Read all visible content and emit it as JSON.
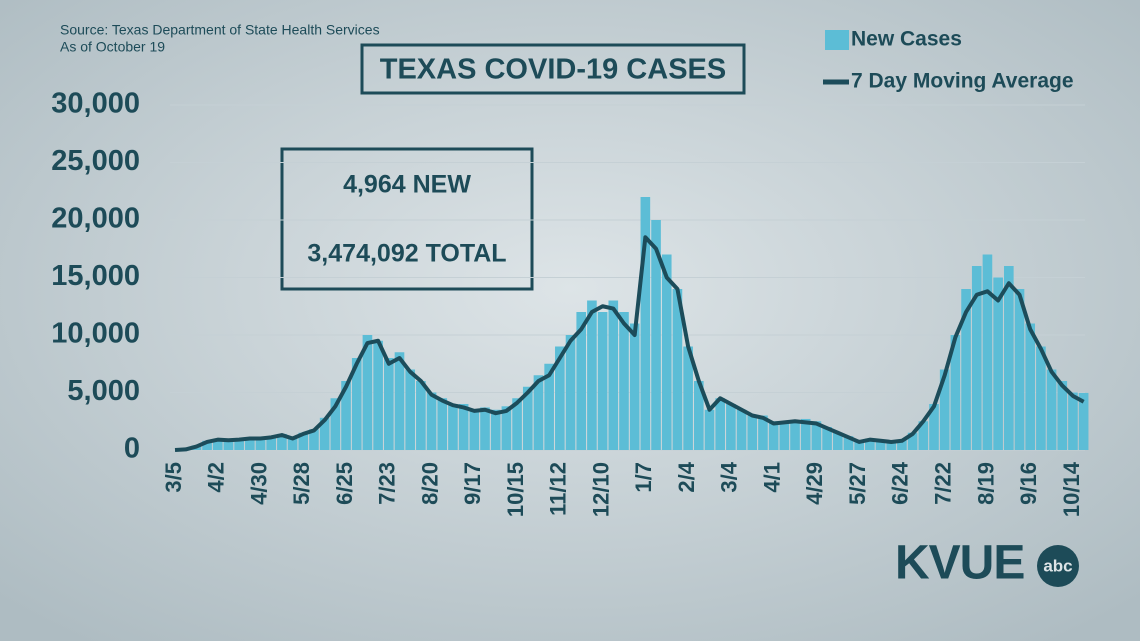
{
  "chart_data": {
    "type": "bar",
    "title": "TEXAS COVID-19 CASES",
    "source": "Source: Texas Department of State Health Services",
    "as_of": "As of October 19",
    "annotations": [
      "4,964 NEW",
      "3,474,092 TOTAL"
    ],
    "categories": [
      "3/5",
      null,
      null,
      null,
      "4/2",
      null,
      null,
      null,
      "4/30",
      null,
      null,
      null,
      "5/28",
      null,
      null,
      null,
      "6/25",
      null,
      null,
      null,
      "7/23",
      null,
      null,
      null,
      "8/20",
      null,
      null,
      null,
      "9/17",
      null,
      null,
      null,
      "10/15",
      null,
      null,
      null,
      "11/12",
      null,
      null,
      null,
      "12/10",
      null,
      null,
      null,
      "1/7",
      null,
      null,
      null,
      "2/4",
      null,
      null,
      null,
      "3/4",
      null,
      null,
      null,
      "4/1",
      null,
      null,
      null,
      "4/29",
      null,
      null,
      null,
      "5/27",
      null,
      null,
      null,
      "6/24",
      null,
      null,
      null,
      "7/22",
      null,
      null,
      null,
      "8/19",
      null,
      null,
      null,
      "9/16",
      null,
      null,
      null,
      "10/14",
      null
    ],
    "series": [
      {
        "name": "New Cases",
        "type": "bar",
        "color": "#5cbdd6",
        "values": [
          0,
          100,
          400,
          800,
          1000,
          900,
          1000,
          1100,
          1100,
          1200,
          1400,
          1100,
          1500,
          1800,
          2800,
          4500,
          6000,
          8000,
          10000,
          9500,
          8000,
          8500,
          7000,
          6000,
          5000,
          4500,
          4000,
          4000,
          3500,
          3700,
          3500,
          3800,
          4500,
          5500,
          6500,
          7500,
          9000,
          10000,
          12000,
          13000,
          12000,
          13000,
          12000,
          11000,
          22000,
          20000,
          17000,
          14000,
          9000,
          6000,
          3500,
          4500,
          4000,
          3500,
          3000,
          3000,
          2500,
          2500,
          2600,
          2700,
          2500,
          2000,
          1500,
          1200,
          800,
          1000,
          900,
          800,
          900,
          1500,
          2500,
          4000,
          7000,
          10000,
          14000,
          16000,
          17000,
          15000,
          16000,
          14000,
          11000,
          9000,
          7000,
          6000,
          5000,
          4964
        ]
      },
      {
        "name": "7 Day Moving Average",
        "type": "line",
        "color": "#1c4c5a",
        "values": [
          0,
          50,
          300,
          700,
          900,
          850,
          900,
          1000,
          1000,
          1100,
          1300,
          1000,
          1400,
          1700,
          2600,
          3800,
          5500,
          7500,
          9300,
          9500,
          7500,
          8000,
          6800,
          6000,
          4800,
          4300,
          3900,
          3700,
          3400,
          3500,
          3200,
          3400,
          4100,
          5000,
          6000,
          6500,
          8000,
          9500,
          10500,
          12000,
          12500,
          12300,
          11000,
          10000,
          18500,
          17500,
          15000,
          14000,
          9000,
          6000,
          3500,
          4500,
          4000,
          3500,
          3000,
          2800,
          2300,
          2400,
          2500,
          2400,
          2300,
          1900,
          1500,
          1100,
          700,
          900,
          800,
          700,
          800,
          1400,
          2500,
          3800,
          6500,
          9800,
          12000,
          13500,
          13800,
          13000,
          14500,
          13500,
          10500,
          8800,
          6800,
          5600,
          4700,
          4200
        ]
      }
    ],
    "ylim": [
      0,
      30000
    ],
    "yticks": [
      0,
      {
        "value": 5000,
        "label": "5,000"
      },
      {
        "value": 10000,
        "label": "10,000"
      },
      {
        "value": 15000,
        "label": "15,000"
      },
      {
        "value": 20000,
        "label": "20,000"
      },
      {
        "value": 25000,
        "label": "25,000"
      },
      {
        "value": 30000,
        "label": "30,000"
      }
    ],
    "grid": true
  },
  "logo": {
    "name": "KVUE",
    "network": "abc"
  }
}
